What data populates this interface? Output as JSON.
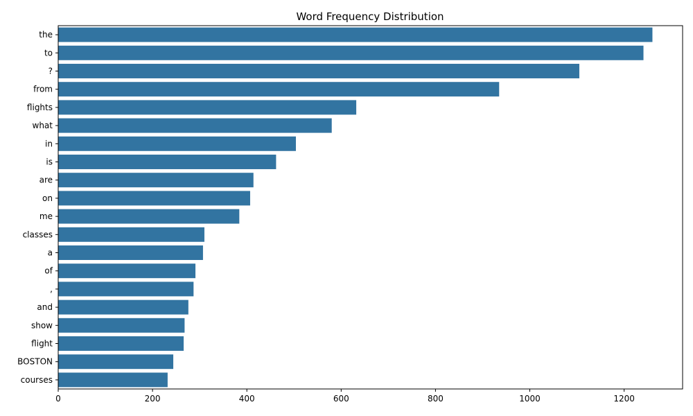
{
  "chart_data": {
    "type": "bar",
    "orientation": "horizontal",
    "title": "Word Frequency Distribution",
    "xlabel": "",
    "ylabel": "",
    "xlim": [
      0,
      1324
    ],
    "x_ticks": [
      0,
      200,
      400,
      600,
      800,
      1000,
      1200
    ],
    "grid": false,
    "bar_color": "#3274a1",
    "categories": [
      "the",
      "to",
      "?",
      "from",
      "flights",
      "what",
      "in",
      "is",
      "are",
      "on",
      "me",
      "classes",
      "a",
      "of",
      ",",
      "and",
      "show",
      "flight",
      "BOSTON",
      "courses"
    ],
    "values": [
      1260,
      1241,
      1105,
      935,
      632,
      580,
      504,
      462,
      414,
      407,
      384,
      310,
      307,
      291,
      287,
      276,
      268,
      266,
      244,
      232
    ]
  }
}
